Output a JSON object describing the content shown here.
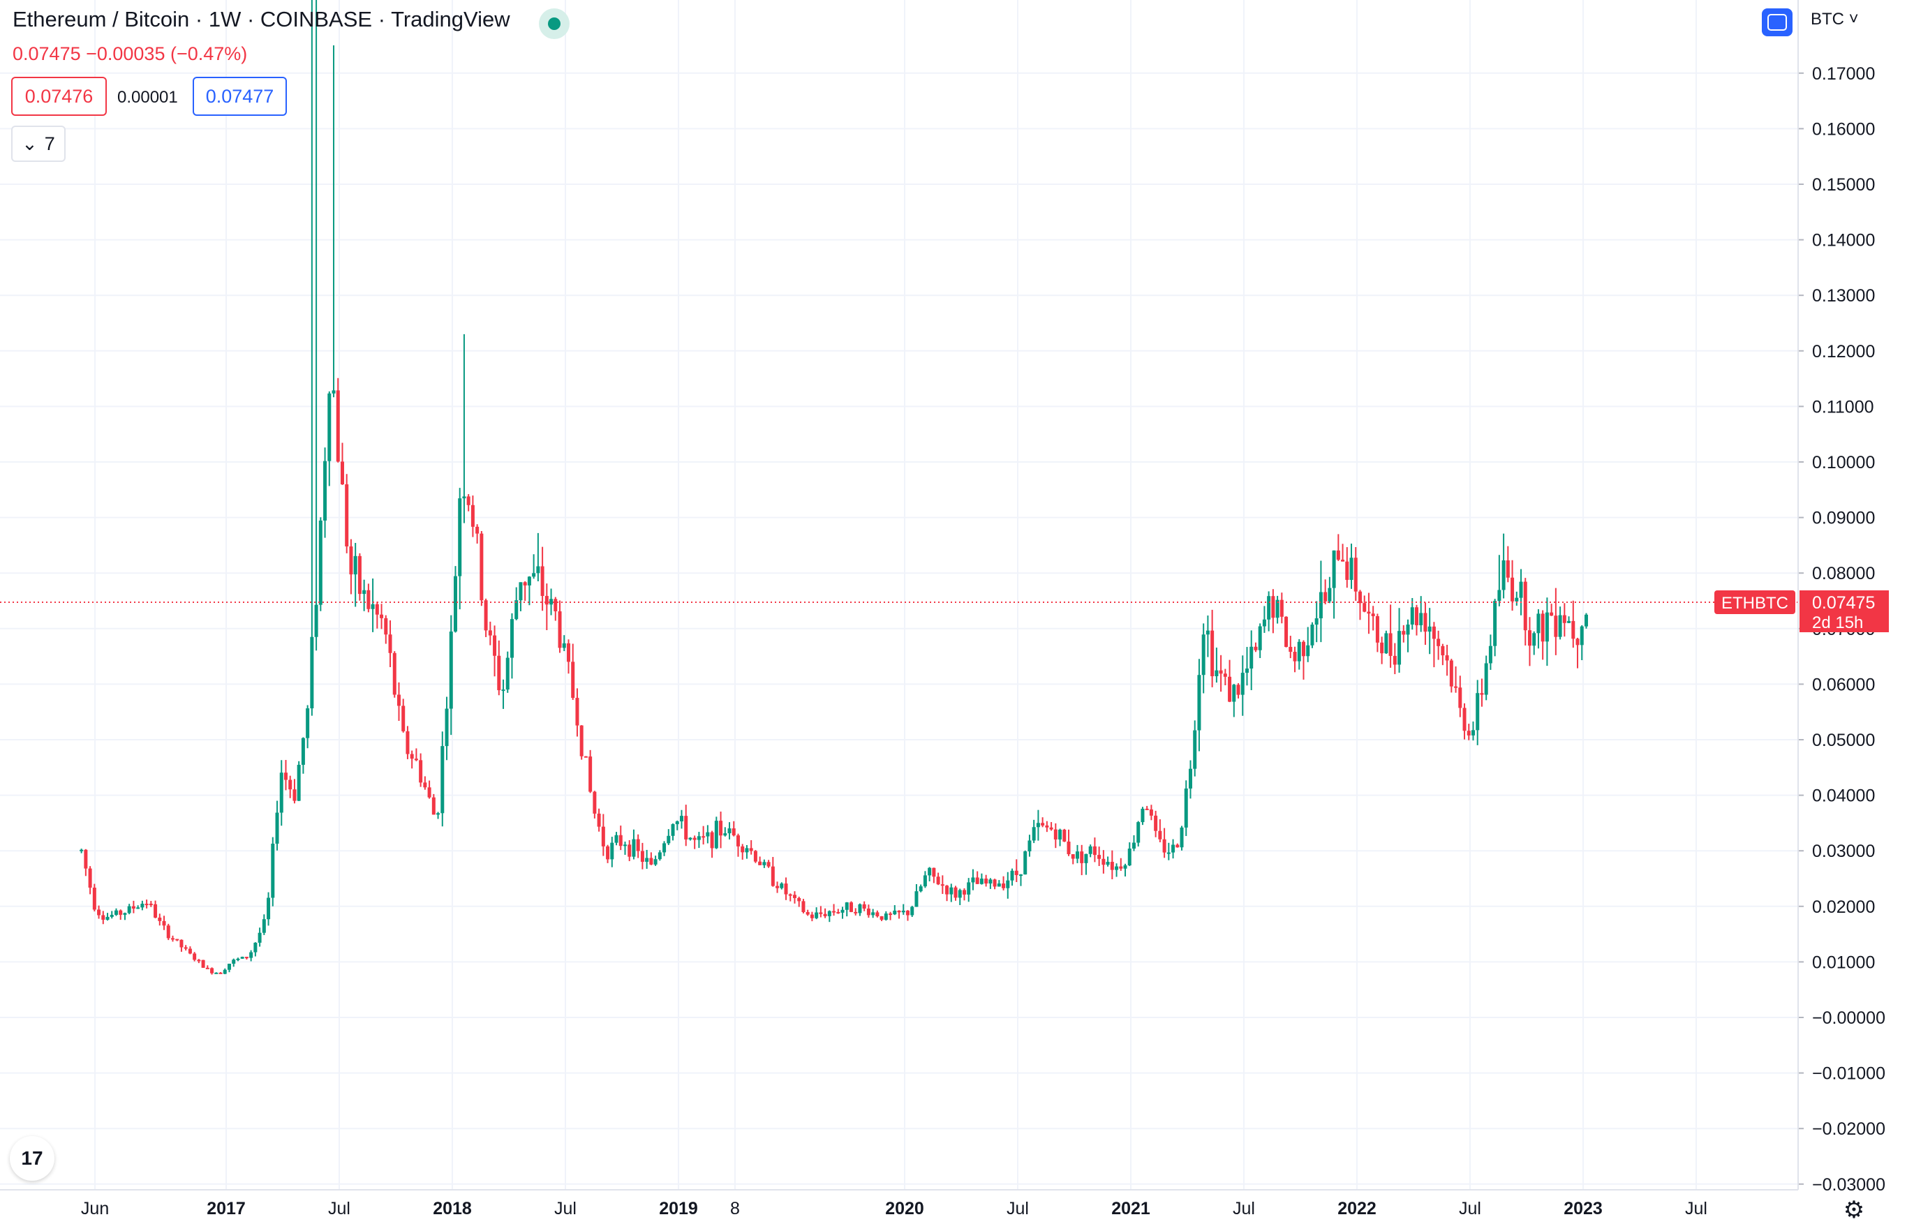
{
  "header": {
    "title": "Ethereum / Bitcoin · 1W · COINBASE · TradingView",
    "change": "0.07475  −0.00035 (−0.47%)",
    "bid": "0.07476",
    "spread": "0.00001",
    "ask": "0.07477",
    "indicators_count": "7"
  },
  "currency_label": "BTC",
  "colors": {
    "up": "#089981",
    "down": "#f23645",
    "grid": "#f0f3fa",
    "text": "#131722",
    "accent": "#2962ff"
  },
  "icons": {
    "collapse": "chevron-down-icon",
    "currency": "currency-icon",
    "logo": "tradingview-logo-icon",
    "settings": "gear-icon"
  },
  "chart_data": {
    "type": "candlestick",
    "symbol": "ETHBTC",
    "last_price": "0.07475",
    "countdown": "2d 15h",
    "y_ticks": [
      "0.17000",
      "0.16000",
      "0.15000",
      "0.14000",
      "0.13000",
      "0.12000",
      "0.11000",
      "0.10000",
      "0.09000",
      "0.08000",
      "0.07000",
      "0.06000",
      "0.05000",
      "0.04000",
      "0.03000",
      "0.02000",
      "0.01000",
      "−0.00000",
      "−0.01000",
      "−0.02000",
      "−0.03000"
    ],
    "y_range": [
      -0.03,
      0.18
    ],
    "x_ticks": [
      {
        "label": "Jun",
        "t": 2016.42,
        "bold": false
      },
      {
        "label": "2017",
        "t": 2017.0,
        "bold": true
      },
      {
        "label": "Jul",
        "t": 2017.5,
        "bold": false
      },
      {
        "label": "2018",
        "t": 2018.0,
        "bold": true
      },
      {
        "label": "Jul",
        "t": 2018.5,
        "bold": false
      },
      {
        "label": "2019",
        "t": 2019.0,
        "bold": true
      },
      {
        "label": "8",
        "t": 2019.25,
        "bold": false
      },
      {
        "label": "2020",
        "t": 2020.0,
        "bold": true
      },
      {
        "label": "Jul",
        "t": 2020.5,
        "bold": false
      },
      {
        "label": "2021",
        "t": 2021.0,
        "bold": true
      },
      {
        "label": "Jul",
        "t": 2021.5,
        "bold": false
      },
      {
        "label": "2022",
        "t": 2022.0,
        "bold": true
      },
      {
        "label": "Jul",
        "t": 2022.5,
        "bold": false
      },
      {
        "label": "2023",
        "t": 2023.0,
        "bold": true
      },
      {
        "label": "Jul",
        "t": 2023.5,
        "bold": false
      }
    ],
    "x_range": [
      2016.0,
      2023.66
    ],
    "series_close": [
      [
        2016.36,
        0.03
      ],
      [
        2016.42,
        0.02
      ],
      [
        2016.46,
        0.018
      ],
      [
        2016.55,
        0.019
      ],
      [
        2016.65,
        0.021
      ],
      [
        2016.72,
        0.016
      ],
      [
        2016.82,
        0.012
      ],
      [
        2016.92,
        0.0085
      ],
      [
        2016.97,
        0.008
      ],
      [
        2017.02,
        0.01
      ],
      [
        2017.1,
        0.011
      ],
      [
        2017.18,
        0.018
      ],
      [
        2017.24,
        0.045
      ],
      [
        2017.3,
        0.04
      ],
      [
        2017.36,
        0.055
      ],
      [
        2017.42,
        0.09
      ],
      [
        2017.46,
        0.12
      ],
      [
        2017.5,
        0.1
      ],
      [
        2017.55,
        0.08
      ],
      [
        2017.62,
        0.075
      ],
      [
        2017.7,
        0.07
      ],
      [
        2017.78,
        0.05
      ],
      [
        2017.85,
        0.045
      ],
      [
        2017.93,
        0.035
      ],
      [
        2018.0,
        0.07
      ],
      [
        2018.04,
        0.1
      ],
      [
        2018.09,
        0.09
      ],
      [
        2018.15,
        0.07
      ],
      [
        2018.22,
        0.058
      ],
      [
        2018.3,
        0.08
      ],
      [
        2018.38,
        0.078
      ],
      [
        2018.46,
        0.072
      ],
      [
        2018.55,
        0.055
      ],
      [
        2018.62,
        0.038
      ],
      [
        2018.68,
        0.03
      ],
      [
        2018.76,
        0.032
      ],
      [
        2018.88,
        0.027
      ],
      [
        2018.98,
        0.036
      ],
      [
        2019.08,
        0.031
      ],
      [
        2019.2,
        0.034
      ],
      [
        2019.3,
        0.031
      ],
      [
        2019.38,
        0.027
      ],
      [
        2019.46,
        0.023
      ],
      [
        2019.58,
        0.018
      ],
      [
        2019.66,
        0.019
      ],
      [
        2019.78,
        0.02
      ],
      [
        2019.92,
        0.018
      ],
      [
        2020.02,
        0.019
      ],
      [
        2020.1,
        0.026
      ],
      [
        2020.22,
        0.022
      ],
      [
        2020.3,
        0.024
      ],
      [
        2020.4,
        0.024
      ],
      [
        2020.5,
        0.026
      ],
      [
        2020.58,
        0.034
      ],
      [
        2020.66,
        0.034
      ],
      [
        2020.75,
        0.029
      ],
      [
        2020.84,
        0.03
      ],
      [
        2020.94,
        0.027
      ],
      [
        2021.0,
        0.03
      ],
      [
        2021.06,
        0.04
      ],
      [
        2021.12,
        0.031
      ],
      [
        2021.2,
        0.03
      ],
      [
        2021.26,
        0.044
      ],
      [
        2021.32,
        0.072
      ],
      [
        2021.38,
        0.062
      ],
      [
        2021.46,
        0.058
      ],
      [
        2021.56,
        0.066
      ],
      [
        2021.62,
        0.076
      ],
      [
        2021.72,
        0.064
      ],
      [
        2021.8,
        0.072
      ],
      [
        2021.88,
        0.076
      ],
      [
        2021.92,
        0.085
      ],
      [
        2022.0,
        0.078
      ],
      [
        2022.06,
        0.07
      ],
      [
        2022.14,
        0.066
      ],
      [
        2022.22,
        0.072
      ],
      [
        2022.3,
        0.073
      ],
      [
        2022.4,
        0.064
      ],
      [
        2022.46,
        0.054
      ],
      [
        2022.52,
        0.052
      ],
      [
        2022.58,
        0.066
      ],
      [
        2022.64,
        0.08
      ],
      [
        2022.72,
        0.077
      ],
      [
        2022.78,
        0.068
      ],
      [
        2022.84,
        0.072
      ],
      [
        2022.9,
        0.074
      ],
      [
        2022.96,
        0.07
      ],
      [
        2023.02,
        0.07475
      ]
    ]
  }
}
